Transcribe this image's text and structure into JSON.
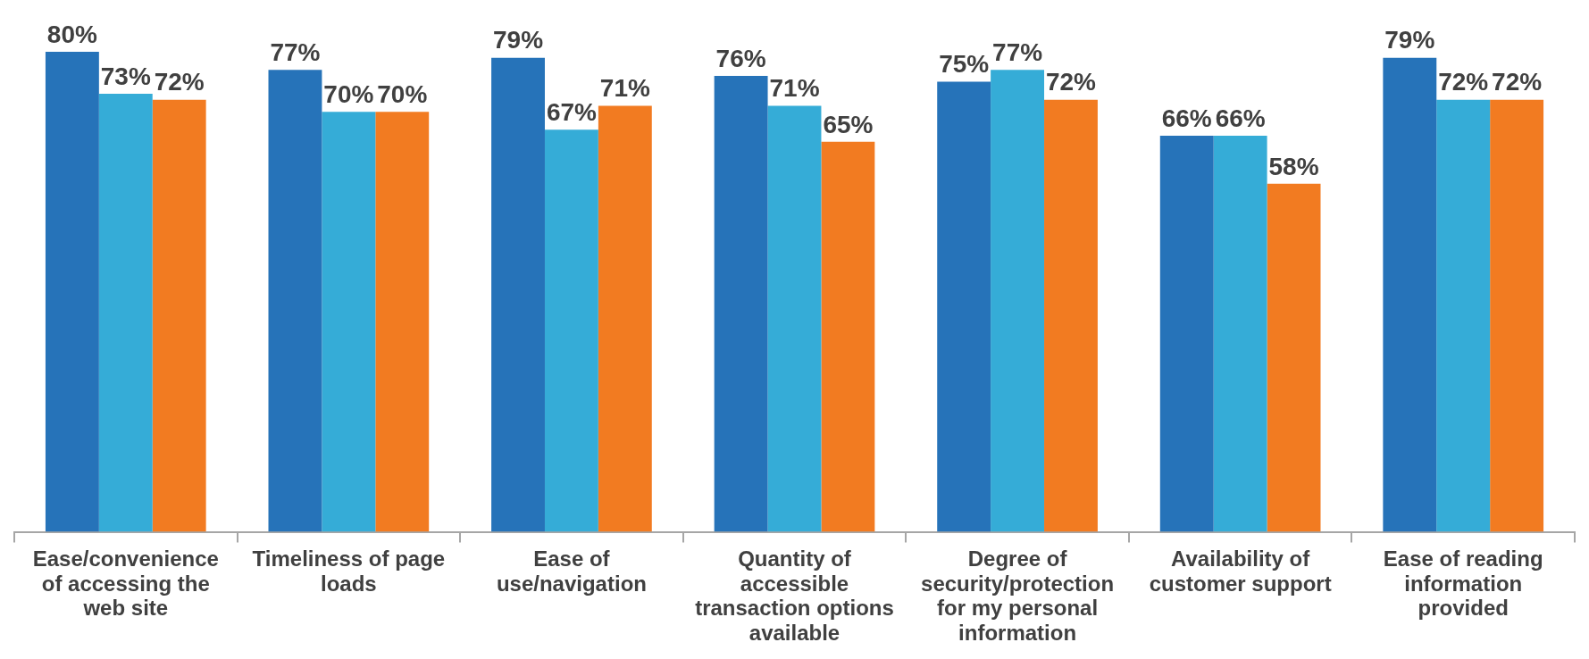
{
  "chart_data": {
    "type": "bar",
    "categories": [
      "Ease/convenience of accessing the web site",
      "Timeliness of page loads",
      "Ease of use/navigation",
      "Quantity of accessible transaction options available",
      "Degree of security/protection for my personal information",
      "Availability of customer support",
      "Ease of reading information provided"
    ],
    "series": [
      {
        "color": "#2673b9",
        "values": [
          80,
          77,
          79,
          76,
          75,
          66,
          79
        ],
        "value_labels": [
          "80%",
          "77%",
          "79%",
          "76%",
          "75%",
          "66%",
          "79%"
        ]
      },
      {
        "color": "#35acd7",
        "values": [
          73,
          70,
          67,
          71,
          77,
          66,
          72
        ],
        "value_labels": [
          "73%",
          "70%",
          "67%",
          "71%",
          "77%",
          "66%",
          "72%"
        ]
      },
      {
        "color": "#f27b21",
        "values": [
          72,
          70,
          71,
          65,
          72,
          58,
          72
        ],
        "value_labels": [
          "72%",
          "70%",
          "71%",
          "65%",
          "72%",
          "58%",
          "72%"
        ]
      }
    ]
  }
}
